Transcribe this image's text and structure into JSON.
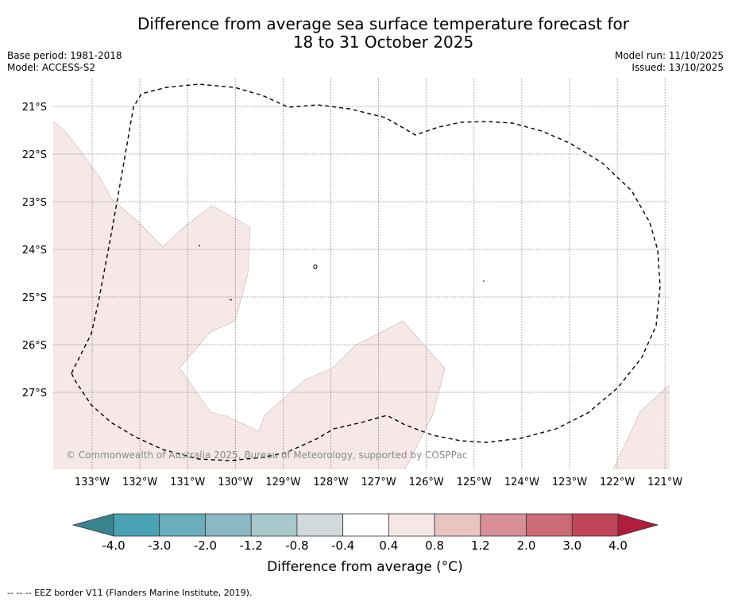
{
  "title": {
    "line1": "Difference from average sea surface temperature forecast for",
    "line2": "18 to 31 October 2025"
  },
  "meta": {
    "base_period": "Base period: 1981-2018",
    "model": "Model: ACCESS-S2",
    "model_run": "Model run: 11/10/2025",
    "issued": "Issued: 13/10/2025"
  },
  "map": {
    "lat_labels": [
      "21°S",
      "22°S",
      "23°S",
      "24°S",
      "25°S",
      "26°S",
      "27°S"
    ],
    "lat_values": [
      -21,
      -22,
      -23,
      -24,
      -25,
      -26,
      -27
    ],
    "lon_labels": [
      "133°W",
      "132°W",
      "131°W",
      "130°W",
      "129°W",
      "128°W",
      "127°W",
      "126°W",
      "125°W",
      "124°W",
      "123°W",
      "122°W",
      "121°W"
    ],
    "lon_values": [
      -133,
      -132,
      -131,
      -130,
      -129,
      -128,
      -127,
      -126,
      -125,
      -124,
      -123,
      -122,
      -121
    ],
    "copyright": "© Commonwealth of Australia 2025, Bureau of Meteorology, supported by COSPPac",
    "anomaly_fill_color": "#f5e8e6",
    "eez_color": "#000000"
  },
  "colorbar": {
    "ticks": [
      "-4.0",
      "-3.0",
      "-2.0",
      "-1.2",
      "-0.8",
      "-0.4",
      "0.4",
      "0.8",
      "1.2",
      "2.0",
      "3.0",
      "4.0"
    ],
    "colors": [
      "#4aa3b4",
      "#6aadbc",
      "#8ab8c3",
      "#a9c8cc",
      "#d1d9da",
      "#ffffff",
      "#f5e8e6",
      "#e8c5c1",
      "#d88f97",
      "#cc6a75",
      "#c04658"
    ],
    "under_color": "#3a8491",
    "over_color": "#b01e3c",
    "label": "Difference from average (°C)"
  },
  "footnote": "--  --  -- EEZ border V11 (Flanders Marine Institute, 2019)."
}
